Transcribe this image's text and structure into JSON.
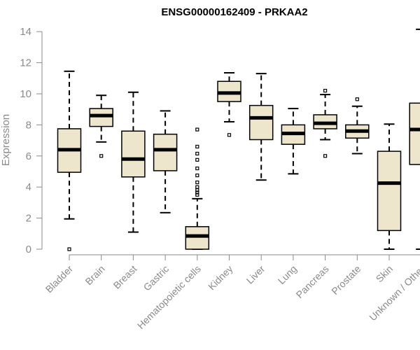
{
  "chart_data": {
    "type": "box",
    "title": "ENSG00000162409 - PRKAA2",
    "xlabel": "",
    "ylabel": "Expression",
    "ylim": [
      0,
      14.2
    ],
    "yticks": [
      0,
      2,
      4,
      6,
      8,
      10,
      12,
      14
    ],
    "box_color": "#ede6cd",
    "categories": [
      "Bladder",
      "Brain",
      "Breast",
      "Gastric",
      "Hematopoietic cells",
      "Kidney",
      "Liver",
      "Lung",
      "Pancreas",
      "Prostate",
      "Skin",
      "Unknown / Other"
    ],
    "boxes": [
      {
        "name": "Bladder",
        "min": 1.95,
        "q1": 4.95,
        "median": 6.4,
        "q3": 7.75,
        "max": 11.45,
        "outliers": [
          0.0
        ]
      },
      {
        "name": "Brain",
        "min": 6.9,
        "q1": 7.9,
        "median": 8.6,
        "q3": 9.05,
        "max": 9.9,
        "outliers": [
          6.0
        ]
      },
      {
        "name": "Breast",
        "min": 1.1,
        "q1": 4.65,
        "median": 5.8,
        "q3": 7.6,
        "max": 10.1,
        "outliers": []
      },
      {
        "name": "Gastric",
        "min": 2.35,
        "q1": 5.05,
        "median": 6.4,
        "q3": 7.4,
        "max": 8.9,
        "outliers": []
      },
      {
        "name": "Hematopoietic cells",
        "min": 0.0,
        "q1": 0.0,
        "median": 0.85,
        "q3": 1.45,
        "max": 3.25,
        "outliers": [
          3.5,
          3.65,
          3.8,
          4.0,
          4.3,
          4.75,
          5.2,
          5.75,
          6.15,
          6.6,
          7.7
        ]
      },
      {
        "name": "Kidney",
        "min": 8.2,
        "q1": 9.5,
        "median": 10.05,
        "q3": 10.8,
        "max": 11.35,
        "outliers": [
          7.35
        ]
      },
      {
        "name": "Liver",
        "min": 4.45,
        "q1": 7.05,
        "median": 8.45,
        "q3": 9.25,
        "max": 11.3,
        "outliers": []
      },
      {
        "name": "Lung",
        "min": 4.85,
        "q1": 6.75,
        "median": 7.45,
        "q3": 8.0,
        "max": 9.05,
        "outliers": []
      },
      {
        "name": "Pancreas",
        "min": 7.05,
        "q1": 7.75,
        "median": 8.1,
        "q3": 8.65,
        "max": 9.95,
        "outliers": [
          10.2,
          6.0
        ]
      },
      {
        "name": "Prostate",
        "min": 6.15,
        "q1": 7.15,
        "median": 7.6,
        "q3": 8.0,
        "max": 9.2,
        "outliers": [
          9.65
        ]
      },
      {
        "name": "Skin",
        "min": 0.0,
        "q1": 1.2,
        "median": 4.25,
        "q3": 6.3,
        "max": 8.05,
        "outliers": []
      },
      {
        "name": "Unknown / Other",
        "min": 0.0,
        "q1": 5.45,
        "median": 7.7,
        "q3": 9.4,
        "max": 14.15,
        "outliers": []
      }
    ]
  }
}
